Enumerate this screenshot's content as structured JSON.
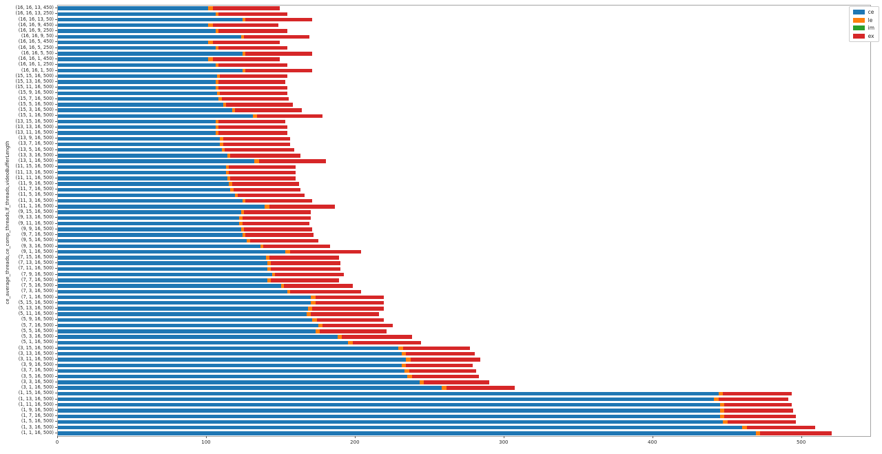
{
  "figure": {
    "background": "#ffffff",
    "ylabel": "ce_average_threads,ce_comp_threads,lf_threads,videoBufferLength"
  },
  "legend": {
    "position": "upper right",
    "entries": [
      {
        "label": "ce",
        "color": "#1f77b4"
      },
      {
        "label": "le",
        "color": "#ff7f0e"
      },
      {
        "label": "im",
        "color": "#2ca02c"
      },
      {
        "label": "ex",
        "color": "#d62728"
      }
    ]
  },
  "chart_data": {
    "type": "bar",
    "orientation": "horizontal",
    "stacked": true,
    "title": "",
    "xlabel": "",
    "ylabel": "ce_average_threads,ce_comp_threads,lf_threads,videoBufferLength",
    "xlim": [
      0,
      546
    ],
    "x_ticks": [
      0,
      100,
      200,
      300,
      400,
      500
    ],
    "grid": false,
    "legend_position": "upper right",
    "categories": [
      "(16, 16, 13, 450)",
      "(16, 16, 13, 250)",
      "(16, 16, 13, 50)",
      "(16, 16, 9, 450)",
      "(16, 16, 9, 250)",
      "(16, 16, 9, 50)",
      "(16, 16, 5, 450)",
      "(16, 16, 5, 250)",
      "(16, 16, 5, 50)",
      "(16, 16, 1, 450)",
      "(16, 16, 1, 250)",
      "(16, 16, 1, 50)",
      "(15, 15, 16, 500)",
      "(15, 13, 16, 500)",
      "(15, 11, 16, 500)",
      "(15, 9, 16, 500)",
      "(15, 7, 16, 500)",
      "(15, 5, 16, 500)",
      "(15, 3, 16, 500)",
      "(15, 1, 16, 500)",
      "(13, 15, 16, 500)",
      "(13, 13, 16, 500)",
      "(13, 11, 16, 500)",
      "(13, 9, 16, 500)",
      "(13, 7, 16, 500)",
      "(13, 5, 16, 500)",
      "(13, 3, 16, 500)",
      "(13, 1, 16, 500)",
      "(11, 15, 16, 500)",
      "(11, 13, 16, 500)",
      "(11, 11, 16, 500)",
      "(11, 9, 16, 500)",
      "(11, 7, 16, 500)",
      "(11, 5, 16, 500)",
      "(11, 3, 16, 500)",
      "(11, 1, 16, 500)",
      "(9, 15, 16, 500)",
      "(9, 13, 16, 500)",
      "(9, 11, 16, 500)",
      "(9, 9, 16, 500)",
      "(9, 7, 16, 500)",
      "(9, 5, 16, 500)",
      "(9, 3, 16, 500)",
      "(9, 1, 16, 500)",
      "(7, 15, 16, 500)",
      "(7, 13, 16, 500)",
      "(7, 11, 16, 500)",
      "(7, 9, 16, 500)",
      "(7, 7, 16, 500)",
      "(7, 5, 16, 500)",
      "(7, 3, 16, 500)",
      "(7, 1, 16, 500)",
      "(5, 15, 16, 500)",
      "(5, 13, 16, 500)",
      "(5, 11, 16, 500)",
      "(5, 9, 16, 500)",
      "(5, 7, 16, 500)",
      "(5, 5, 16, 500)",
      "(5, 3, 16, 500)",
      "(5, 1, 16, 500)",
      "(3, 15, 16, 500)",
      "(3, 13, 16, 500)",
      "(3, 11, 16, 500)",
      "(3, 9, 16, 500)",
      "(3, 7, 16, 500)",
      "(3, 5, 16, 500)",
      "(3, 3, 16, 500)",
      "(3, 1, 16, 500)",
      "(1, 15, 16, 500)",
      "(1, 13, 16, 500)",
      "(1, 11, 16, 500)",
      "(1, 9, 16, 500)",
      "(1, 7, 16, 500)",
      "(1, 5, 16, 500)",
      "(1, 3, 16, 500)",
      "(1, 1, 16, 500)"
    ],
    "series": [
      {
        "name": "ce",
        "color": "#1f77b4",
        "values": [
          101,
          106,
          124,
          101,
          106,
          123,
          101,
          106,
          124,
          101,
          106,
          124,
          107,
          106,
          106,
          107,
          108,
          111,
          117,
          131,
          106,
          106,
          106,
          109,
          109,
          110,
          114,
          132,
          113,
          113,
          114,
          115,
          116,
          119,
          124,
          139,
          123,
          122,
          122,
          123,
          124,
          127,
          136,
          153,
          140,
          141,
          141,
          144,
          141,
          150,
          154,
          170,
          170,
          168,
          167,
          171,
          175,
          173,
          188,
          195,
          229,
          231,
          234,
          231,
          233,
          235,
          243,
          258,
          444,
          441,
          445,
          445,
          445,
          447,
          460,
          469
        ]
      },
      {
        "name": "le",
        "color": "#ff7f0e",
        "values": [
          3,
          2,
          2,
          3,
          2,
          2,
          3,
          2,
          2,
          3,
          2,
          2,
          2,
          2,
          2,
          2,
          2,
          2,
          2,
          3,
          2,
          2,
          2,
          2,
          2,
          2,
          2,
          3,
          2,
          2,
          2,
          2,
          2,
          2,
          2,
          3,
          2,
          2,
          2,
          2,
          2,
          2,
          2,
          3,
          2,
          2,
          2,
          2,
          2,
          2,
          2,
          3,
          3,
          3,
          3,
          3,
          3,
          3,
          3,
          3,
          3,
          3,
          3,
          3,
          3,
          3,
          3,
          3,
          3,
          3,
          3,
          3,
          3,
          3,
          3,
          3
        ]
      },
      {
        "name": "im",
        "color": "#2ca02c",
        "values": [
          0,
          0,
          0,
          0,
          0,
          0,
          0,
          0,
          0,
          0,
          0,
          0,
          0,
          0,
          0,
          0,
          0,
          0,
          0,
          0,
          0,
          0,
          0,
          0,
          0,
          0,
          0,
          0,
          0,
          0,
          0,
          0,
          0,
          0,
          0,
          0,
          0,
          0,
          0,
          0,
          0,
          0,
          0,
          0,
          0,
          0,
          0,
          0,
          0,
          0,
          0,
          0,
          0,
          0,
          0,
          0,
          0,
          0,
          0,
          0,
          0,
          0,
          0,
          0,
          0,
          0,
          0,
          0,
          0,
          0,
          0,
          0,
          0,
          0,
          0,
          0
        ]
      },
      {
        "name": "ex",
        "color": "#d62728",
        "values": [
          45,
          46,
          45,
          44,
          46,
          44,
          45,
          46,
          45,
          45,
          46,
          45,
          45,
          45,
          46,
          45,
          45,
          45,
          45,
          44,
          45,
          46,
          46,
          45,
          45,
          47,
          47,
          45,
          45,
          45,
          44,
          45,
          45,
          45,
          45,
          44,
          45,
          46,
          45,
          46,
          46,
          46,
          45,
          48,
          47,
          47,
          47,
          46,
          46,
          46,
          48,
          46,
          46,
          48,
          46,
          45,
          47,
          45,
          47,
          46,
          45,
          46,
          47,
          45,
          45,
          45,
          44,
          46,
          46,
          47,
          45,
          46,
          48,
          46,
          46,
          48
        ]
      }
    ]
  }
}
